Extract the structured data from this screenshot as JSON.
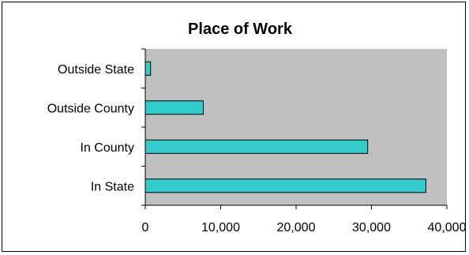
{
  "chart_data": {
    "type": "bar",
    "orientation": "horizontal",
    "title": "Place of Work",
    "categories": [
      "In State",
      "In County",
      "Outside County",
      "Outside State"
    ],
    "values": [
      37200,
      29500,
      7700,
      700
    ],
    "xlabel": "",
    "ylabel": "",
    "xlim": [
      0,
      40000
    ],
    "x_ticks": [
      0,
      10000,
      20000,
      30000,
      40000
    ],
    "x_tick_labels": [
      "0",
      "10,000",
      "20,000",
      "30,000",
      "40,000"
    ],
    "grid": false,
    "legend": "none",
    "colors": {
      "bar": "#33cccc",
      "plot_background": "#c0c0c0",
      "border": "#000000"
    }
  }
}
